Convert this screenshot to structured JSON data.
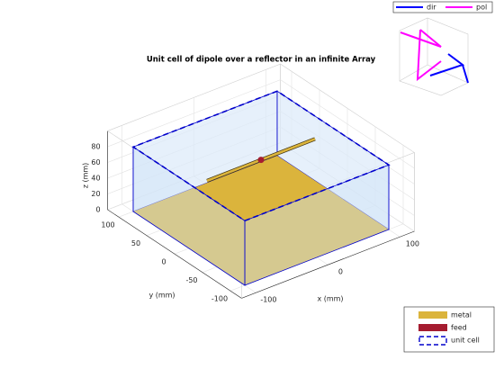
{
  "chart_data": {
    "type": "antenna3d",
    "title": "Unit cell of dipole over a reflector in an infinite Array",
    "xlabel": "x (mm)",
    "ylabel": "y (mm)",
    "zlabel": "z (mm)",
    "xlim": [
      -120,
      120
    ],
    "ylim": [
      -120,
      120
    ],
    "zlim": [
      0,
      100
    ],
    "xticks": [
      -100,
      0,
      100
    ],
    "yticks": [
      -100,
      -50,
      0,
      50,
      100
    ],
    "zticks": [
      0,
      20,
      40,
      60,
      80
    ],
    "grid": true,
    "ground": {
      "x": [
        -100,
        100
      ],
      "y": [
        -100,
        100
      ],
      "z": 0
    },
    "unit_cell": {
      "x": [
        -100,
        100
      ],
      "y": [
        -100,
        100
      ],
      "z": [
        0,
        82
      ]
    },
    "dipole": {
      "x": [
        -75,
        75
      ],
      "y": 0,
      "z": 77
    },
    "feed": {
      "x": 0,
      "y": 0,
      "z": 77
    },
    "legend": [
      {
        "name": "metal",
        "color": "#dbb43c"
      },
      {
        "name": "feed",
        "color": "#a51c30"
      },
      {
        "name": "unit cell",
        "color": "#0000cc"
      }
    ],
    "orientation_legend": [
      {
        "name": "dir",
        "color": "#0000ff"
      },
      {
        "name": "pol",
        "color": "#ff00ff"
      }
    ]
  }
}
